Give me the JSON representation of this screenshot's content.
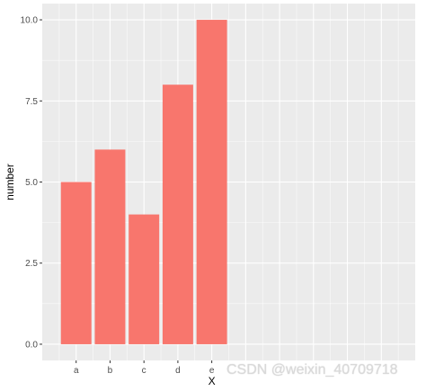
{
  "chart_data": {
    "type": "bar",
    "categories": [
      "a",
      "b",
      "c",
      "d",
      "e"
    ],
    "values": [
      5,
      6,
      4,
      8,
      10
    ],
    "xlabel": "X",
    "ylabel": "number",
    "ylim": [
      -0.5,
      10.5
    ],
    "yticks": [
      0.0,
      2.5,
      5.0,
      7.5,
      10.0
    ],
    "ytick_labels": [
      "0.0",
      "2.5",
      "5.0",
      "7.5",
      "10.0"
    ],
    "grid": true,
    "legend": "none"
  },
  "colors": {
    "bar": "#f8766d",
    "panel_background": "#ebebeb",
    "grid_major": "#ffffff",
    "axis_text": "#4d4d4d",
    "axis_title": "#000000"
  },
  "watermark": "CSDN @weixin_40709718"
}
